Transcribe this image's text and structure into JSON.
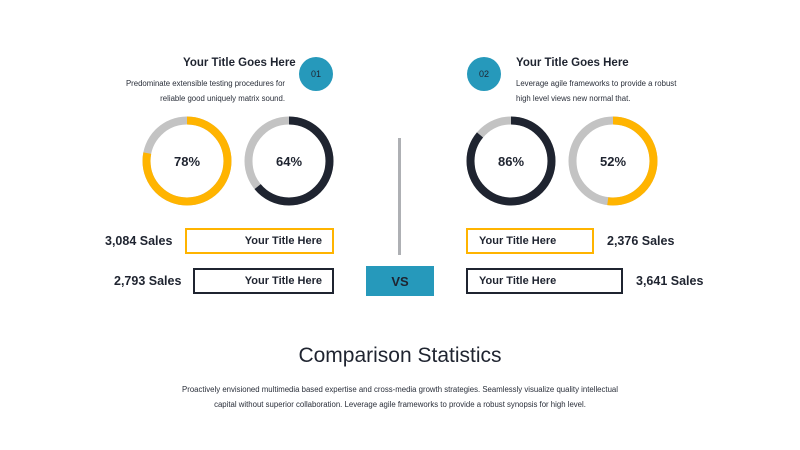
{
  "colors": {
    "accent_teal": "#2699bb",
    "accent_yellow": "#ffb400",
    "dark_navy": "#1f2430",
    "track_gray": "#c3c3c3",
    "divider_gray": "#aeb0b4"
  },
  "left": {
    "title": "Your Title Goes Here",
    "number": "01",
    "desc_line1": "Predominate extensible testing procedures for",
    "desc_line2": "reliable good uniquely matrix sound.",
    "donut1": {
      "percent": 78,
      "label": "78%",
      "color": "#ffb400"
    },
    "donut2": {
      "percent": 64,
      "label": "64%",
      "color": "#1f2430"
    },
    "row1": {
      "sales": "3,084 Sales",
      "box_label": "Your Title Here",
      "box_color": "#ffb400"
    },
    "row2": {
      "sales": "2,793 Sales",
      "box_label": "Your Title Here",
      "box_color": "#1f2430"
    }
  },
  "right": {
    "title": "Your Title Goes Here",
    "number": "02",
    "desc_line1": "Leverage agile frameworks to provide a robust",
    "desc_line2": "high level views new normal that.",
    "donut1": {
      "percent": 86,
      "label": "86%",
      "color": "#1f2430"
    },
    "donut2": {
      "percent": 52,
      "label": "52%",
      "color": "#ffb400"
    },
    "row1": {
      "sales": "2,376 Sales",
      "box_label": "Your Title Here",
      "box_color": "#ffb400"
    },
    "row2": {
      "sales": "3,641 Sales",
      "box_label": "Your Title Here",
      "box_color": "#1f2430"
    }
  },
  "vs_label": "VS",
  "footer": {
    "title": "Comparison Statistics",
    "desc_line1": "Proactively envisioned multimedia based expertise and cross-media growth strategies. Seamlessly visualize quality intellectual",
    "desc_line2": "capital without superior collaboration. Leverage agile frameworks to provide a robust synopsis for high level."
  }
}
